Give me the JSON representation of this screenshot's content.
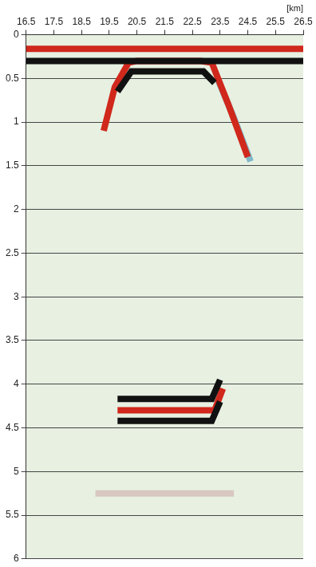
{
  "chart_data": {
    "type": "line",
    "x_label": "[km]",
    "xlim": [
      16.5,
      26.5
    ],
    "xticks": [
      16.5,
      17.5,
      18.5,
      19.5,
      20.5,
      21.5,
      22.5,
      23.5,
      24.5,
      25.5,
      26.5
    ],
    "ylim": [
      0,
      6
    ],
    "yticks": [
      0,
      0.5,
      1,
      1.5,
      2,
      2.5,
      3,
      3.5,
      4,
      4.5,
      5,
      5.5,
      6
    ],
    "grid": true,
    "series": [
      {
        "color": "#111111",
        "x": [
          16.5,
          26.5
        ],
        "values": [
          0.3,
          0.3
        ]
      },
      {
        "color": "#d0281c",
        "x": [
          16.5,
          26.5
        ],
        "values": [
          0.16,
          0.16
        ]
      },
      {
        "color": "#111111",
        "x": [
          19.8,
          20.3,
          22.9,
          23.3
        ],
        "values": [
          0.65,
          0.42,
          0.42,
          0.55
        ]
      },
      {
        "color": "#d0281c",
        "x": [
          19.3,
          19.7,
          20.2,
          20.5,
          22.8,
          23.2,
          23.8,
          24.5
        ],
        "values": [
          1.1,
          0.6,
          0.32,
          0.3,
          0.3,
          0.32,
          0.8,
          1.4
        ]
      },
      {
        "color": "#7fb8c8",
        "x": [
          23.4,
          24.0,
          24.6
        ],
        "values": [
          0.5,
          0.95,
          1.45
        ]
      },
      {
        "color": "#111111",
        "x": [
          19.8,
          23.2,
          23.5
        ],
        "values": [
          4.17,
          4.17,
          3.95
        ]
      },
      {
        "color": "#111111",
        "x": [
          19.8,
          23.2,
          23.5
        ],
        "values": [
          4.42,
          4.42,
          4.2
        ]
      },
      {
        "color": "#d0281c",
        "x": [
          19.8,
          23.3,
          23.6
        ],
        "values": [
          4.3,
          4.3,
          4.05
        ]
      },
      {
        "color": "#d8c8c0",
        "x": [
          19.0,
          24.0
        ],
        "values": [
          5.25,
          5.25
        ]
      }
    ]
  }
}
